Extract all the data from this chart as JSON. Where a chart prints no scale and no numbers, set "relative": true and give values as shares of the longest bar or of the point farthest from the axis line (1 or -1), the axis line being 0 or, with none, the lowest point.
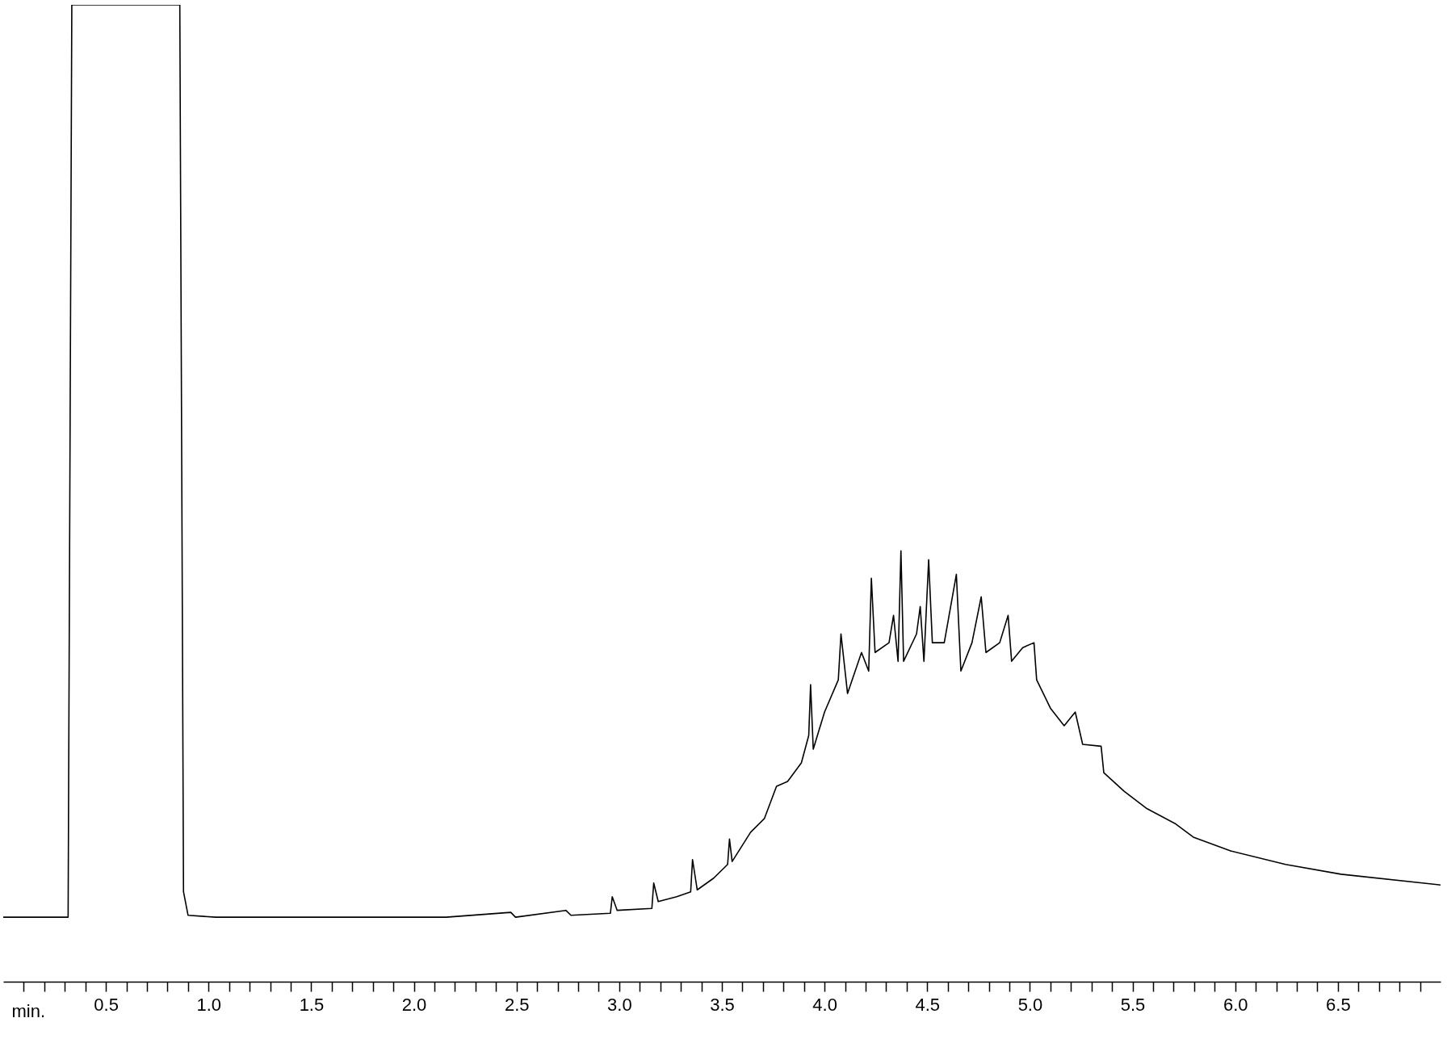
{
  "chart_data": {
    "type": "line",
    "relative": true,
    "xlabel": "min.",
    "xlim": [
      0,
      7
    ],
    "xticks": [
      {
        "value": 0.1,
        "label": null
      },
      {
        "value": 0.2,
        "label": null
      },
      {
        "value": 0.3,
        "label": null
      },
      {
        "value": 0.4,
        "label": null
      },
      0.5,
      {
        "value": 0.6,
        "label": null
      },
      {
        "value": 0.7,
        "label": null
      },
      {
        "value": 0.8,
        "label": null
      },
      {
        "value": 0.9,
        "label": null
      },
      {
        "value": 1,
        "label": "1.0"
      },
      {
        "value": 1.1,
        "label": null
      },
      {
        "value": 1.2,
        "label": null
      },
      {
        "value": 1.3,
        "label": null
      },
      {
        "value": 1.4,
        "label": null
      },
      1.5,
      {
        "value": 1.6,
        "label": null
      },
      {
        "value": 1.7,
        "label": null
      },
      {
        "value": 1.8,
        "label": null
      },
      {
        "value": 1.9,
        "label": null
      },
      {
        "value": 2,
        "label": "2.0"
      },
      {
        "value": 2.1,
        "label": null
      },
      {
        "value": 2.2,
        "label": null
      },
      {
        "value": 2.3,
        "label": null
      },
      {
        "value": 2.4,
        "label": null
      },
      2.5,
      {
        "value": 2.6,
        "label": null
      },
      {
        "value": 2.7,
        "label": null
      },
      {
        "value": 2.8,
        "label": null
      },
      {
        "value": 2.9,
        "label": null
      },
      {
        "value": 3,
        "label": "3.0"
      },
      {
        "value": 3.1,
        "label": null
      },
      {
        "value": 3.2,
        "label": null
      },
      {
        "value": 3.3,
        "label": null
      },
      {
        "value": 3.4,
        "label": null
      },
      3.5,
      {
        "value": 3.6,
        "label": null
      },
      {
        "value": 3.7,
        "label": null
      },
      {
        "value": 3.8,
        "label": null
      },
      {
        "value": 3.9,
        "label": null
      },
      {
        "value": 4,
        "label": "4.0"
      },
      {
        "value": 4.1,
        "label": null
      },
      {
        "value": 4.2,
        "label": null
      },
      {
        "value": 4.3,
        "label": null
      },
      {
        "value": 4.4,
        "label": null
      },
      4.5,
      {
        "value": 4.6,
        "label": null
      },
      {
        "value": 4.7,
        "label": null
      },
      {
        "value": 4.8,
        "label": null
      },
      {
        "value": 4.9,
        "label": null
      },
      {
        "value": 5,
        "label": "5.0"
      },
      {
        "value": 5.1,
        "label": null
      },
      {
        "value": 5.2,
        "label": null
      },
      {
        "value": 5.3,
        "label": null
      },
      {
        "value": 5.4,
        "label": null
      },
      5.5,
      {
        "value": 5.6,
        "label": null
      },
      {
        "value": 5.7,
        "label": null
      },
      {
        "value": 5.8,
        "label": null
      },
      {
        "value": 5.9,
        "label": null
      },
      {
        "value": 6,
        "label": "6.0"
      },
      {
        "value": 6.1,
        "label": null
      },
      {
        "value": 6.2,
        "label": null
      },
      {
        "value": 6.3,
        "label": null
      },
      {
        "value": 6.4,
        "label": null
      },
      6.5,
      {
        "value": 6.6,
        "label": null
      },
      {
        "value": 6.7,
        "label": null
      },
      {
        "value": 6.8,
        "label": null
      },
      {
        "value": 6.9,
        "label": null
      }
    ],
    "tick_labels": "x",
    "grid": false,
    "marker": "none",
    "line_style": "solid",
    "series": [
      {
        "color": "#000000",
        "x": [
          0,
          0.316,
          0.334,
          0.86,
          0.878,
          0.9,
          1.035,
          2.157,
          2.472,
          2.495,
          2.74,
          2.765,
          2.957,
          2.966,
          2.99,
          3.159,
          3.168,
          3.19,
          3.28,
          3.348,
          3.357,
          3.38,
          3.46,
          3.528,
          3.537,
          3.55,
          3.64,
          3.707,
          3.766,
          3.82,
          3.887,
          3.923,
          3.932,
          3.945,
          4.0,
          4.067,
          4.08,
          4.112,
          4.18,
          4.215,
          4.228,
          4.246,
          4.314,
          4.336,
          4.358,
          4.372,
          4.385,
          4.448,
          4.466,
          4.484,
          4.507,
          4.525,
          4.583,
          4.642,
          4.664,
          4.718,
          4.763,
          4.786,
          4.853,
          4.894,
          4.911,
          4.965,
          5.02,
          5.033,
          5.1,
          5.167,
          5.221,
          5.257,
          5.347,
          5.36,
          5.459,
          5.571,
          5.706,
          5.796,
          5.975,
          6.245,
          6.515,
          7.0
        ],
        "values": [
          0.066,
          0.066,
          1.0,
          1.0,
          0.092,
          0.068,
          0.066,
          0.066,
          0.071,
          0.066,
          0.073,
          0.068,
          0.07,
          0.087,
          0.073,
          0.075,
          0.101,
          0.082,
          0.087,
          0.092,
          0.125,
          0.094,
          0.106,
          0.12,
          0.146,
          0.123,
          0.153,
          0.167,
          0.2,
          0.205,
          0.224,
          0.252,
          0.304,
          0.238,
          0.276,
          0.309,
          0.356,
          0.295,
          0.337,
          0.318,
          0.413,
          0.337,
          0.347,
          0.375,
          0.328,
          0.441,
          0.328,
          0.356,
          0.384,
          0.328,
          0.432,
          0.347,
          0.347,
          0.417,
          0.318,
          0.347,
          0.394,
          0.337,
          0.347,
          0.375,
          0.328,
          0.342,
          0.347,
          0.309,
          0.28,
          0.262,
          0.276,
          0.243,
          0.241,
          0.214,
          0.195,
          0.177,
          0.162,
          0.148,
          0.134,
          0.12,
          0.11,
          0.099
        ]
      }
    ]
  }
}
